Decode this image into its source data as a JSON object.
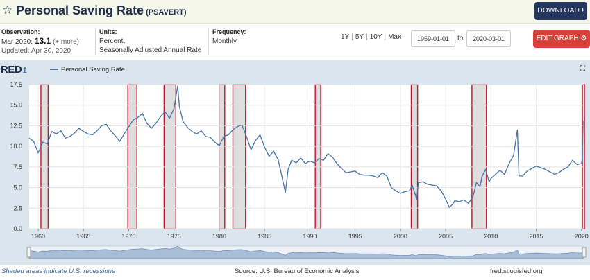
{
  "header": {
    "title": "Personal Saving Rate",
    "series_id": "(PSAVERT)",
    "download_label": "DOWNLOAD",
    "star_icon": "star-outline-icon"
  },
  "meta": {
    "observation_label": "Observation:",
    "observation_date": "Mar 2020:",
    "observation_value": "13.1",
    "observation_more": "(+ more)",
    "updated": "Updated: Apr 30, 2020",
    "units_label": "Units:",
    "units_line1": "Percent,",
    "units_line2": "Seasonally Adjusted Annual Rate",
    "frequency_label": "Frequency:",
    "frequency_value": "Monthly"
  },
  "controls": {
    "range_1y": "1Y",
    "range_5y": "5Y",
    "range_10y": "10Y",
    "range_max": "Max",
    "start_date": "1959-01-01",
    "to_label": "to",
    "end_date": "2020-03-01",
    "edit_label": "EDIT GRAPH"
  },
  "chart_header": {
    "logo_text": "RED",
    "legend_label": "Personal Saving Rate"
  },
  "footer": {
    "recession_note": "Shaded areas indicate U.S. recessions",
    "source": "Source: U.S. Bureau of Economic Analysis",
    "site": "fred.stlouisfed.org"
  },
  "colors": {
    "line": "#4572a7",
    "recession_shade": "#dedede",
    "recession_outline": "#c8102e",
    "plot_bg": "#ffffff",
    "frame_bg": "#dbe5ee",
    "navigator": "#a8bdd6"
  },
  "chart_data": {
    "type": "line",
    "title": "",
    "xlabel": "",
    "ylabel": "",
    "xlim": [
      1959.0,
      2020.25
    ],
    "ylim": [
      0,
      17.5
    ],
    "yticks": [
      "0.0",
      "2.5",
      "5.0",
      "7.5",
      "10.0",
      "12.5",
      "15.0",
      "17.5"
    ],
    "xticks": [
      "1960",
      "1965",
      "1970",
      "1975",
      "1980",
      "1985",
      "1990",
      "1995",
      "2000",
      "2005",
      "2010",
      "2015",
      "2020"
    ],
    "grid": true,
    "legend": "top-left",
    "recessions": [
      [
        1960.3,
        1961.1
      ],
      [
        1969.9,
        1970.9
      ],
      [
        1973.9,
        1975.2
      ],
      [
        1980.0,
        1980.6
      ],
      [
        1981.5,
        1982.9
      ],
      [
        1990.6,
        1991.2
      ],
      [
        2001.2,
        2001.9
      ],
      [
        2007.9,
        2009.5
      ],
      [
        2020.1,
        2020.25
      ]
    ],
    "series": [
      {
        "name": "Personal Saving Rate",
        "points": [
          [
            1959.0,
            11.0
          ],
          [
            1959.5,
            10.6
          ],
          [
            1960.0,
            9.2
          ],
          [
            1960.5,
            10.5
          ],
          [
            1961.0,
            10.3
          ],
          [
            1961.5,
            11.8
          ],
          [
            1962.0,
            11.5
          ],
          [
            1962.5,
            11.9
          ],
          [
            1963.0,
            11.0
          ],
          [
            1963.5,
            11.2
          ],
          [
            1964.0,
            11.6
          ],
          [
            1964.5,
            12.2
          ],
          [
            1965.0,
            11.8
          ],
          [
            1965.5,
            11.5
          ],
          [
            1966.0,
            11.4
          ],
          [
            1966.5,
            11.9
          ],
          [
            1967.0,
            12.5
          ],
          [
            1967.5,
            12.7
          ],
          [
            1968.0,
            11.9
          ],
          [
            1968.5,
            11.3
          ],
          [
            1969.0,
            10.6
          ],
          [
            1969.5,
            11.5
          ],
          [
            1970.0,
            12.4
          ],
          [
            1970.5,
            13.2
          ],
          [
            1971.0,
            13.5
          ],
          [
            1971.5,
            14.0
          ],
          [
            1972.0,
            12.8
          ],
          [
            1972.5,
            12.2
          ],
          [
            1973.0,
            12.8
          ],
          [
            1973.5,
            13.6
          ],
          [
            1974.0,
            14.2
          ],
          [
            1974.5,
            13.4
          ],
          [
            1975.0,
            14.6
          ],
          [
            1975.4,
            17.3
          ],
          [
            1975.6,
            14.8
          ],
          [
            1976.0,
            13.0
          ],
          [
            1976.5,
            12.3
          ],
          [
            1977.0,
            11.8
          ],
          [
            1977.5,
            11.5
          ],
          [
            1978.0,
            11.9
          ],
          [
            1978.5,
            11.2
          ],
          [
            1979.0,
            11.1
          ],
          [
            1979.5,
            10.5
          ],
          [
            1980.0,
            10.1
          ],
          [
            1980.5,
            11.2
          ],
          [
            1981.0,
            11.4
          ],
          [
            1981.5,
            12.0
          ],
          [
            1982.0,
            12.4
          ],
          [
            1982.5,
            12.6
          ],
          [
            1983.0,
            11.2
          ],
          [
            1983.5,
            9.6
          ],
          [
            1984.0,
            10.7
          ],
          [
            1984.5,
            11.4
          ],
          [
            1985.0,
            9.9
          ],
          [
            1985.5,
            8.8
          ],
          [
            1986.0,
            9.4
          ],
          [
            1986.5,
            8.4
          ],
          [
            1987.0,
            5.9
          ],
          [
            1987.3,
            4.4
          ],
          [
            1987.6,
            7.2
          ],
          [
            1988.0,
            8.3
          ],
          [
            1988.5,
            8.0
          ],
          [
            1989.0,
            8.6
          ],
          [
            1989.5,
            7.9
          ],
          [
            1990.0,
            8.2
          ],
          [
            1990.5,
            8.0
          ],
          [
            1991.0,
            8.5
          ],
          [
            1991.5,
            8.3
          ],
          [
            1992.0,
            9.1
          ],
          [
            1992.5,
            8.7
          ],
          [
            1993.0,
            7.9
          ],
          [
            1993.5,
            7.3
          ],
          [
            1994.0,
            6.8
          ],
          [
            1994.5,
            6.9
          ],
          [
            1995.0,
            7.0
          ],
          [
            1995.5,
            6.6
          ],
          [
            1996.0,
            6.5
          ],
          [
            1996.5,
            6.5
          ],
          [
            1997.0,
            6.4
          ],
          [
            1997.5,
            6.2
          ],
          [
            1998.0,
            6.8
          ],
          [
            1998.5,
            6.4
          ],
          [
            1999.0,
            5.0
          ],
          [
            1999.5,
            4.6
          ],
          [
            2000.0,
            4.3
          ],
          [
            2000.5,
            4.5
          ],
          [
            2001.0,
            4.6
          ],
          [
            2001.3,
            5.3
          ],
          [
            2001.8,
            3.6
          ],
          [
            2002.0,
            5.6
          ],
          [
            2002.5,
            5.7
          ],
          [
            2003.0,
            5.4
          ],
          [
            2003.5,
            5.3
          ],
          [
            2004.0,
            5.2
          ],
          [
            2004.5,
            4.6
          ],
          [
            2005.0,
            3.6
          ],
          [
            2005.4,
            2.6
          ],
          [
            2005.8,
            3.0
          ],
          [
            2006.0,
            3.4
          ],
          [
            2006.5,
            3.3
          ],
          [
            2007.0,
            3.5
          ],
          [
            2007.5,
            3.1
          ],
          [
            2008.0,
            3.8
          ],
          [
            2008.4,
            5.6
          ],
          [
            2008.8,
            5.1
          ],
          [
            2009.0,
            6.3
          ],
          [
            2009.4,
            7.2
          ],
          [
            2009.8,
            5.7
          ],
          [
            2010.0,
            6.1
          ],
          [
            2010.5,
            6.6
          ],
          [
            2011.0,
            7.1
          ],
          [
            2011.5,
            6.6
          ],
          [
            2012.0,
            7.9
          ],
          [
            2012.5,
            8.9
          ],
          [
            2012.92,
            12.0
          ],
          [
            2013.1,
            6.4
          ],
          [
            2013.5,
            6.4
          ],
          [
            2014.0,
            7.0
          ],
          [
            2014.5,
            7.3
          ],
          [
            2015.0,
            7.6
          ],
          [
            2015.5,
            7.4
          ],
          [
            2016.0,
            7.2
          ],
          [
            2016.5,
            6.9
          ],
          [
            2017.0,
            6.6
          ],
          [
            2017.5,
            6.8
          ],
          [
            2018.0,
            7.2
          ],
          [
            2018.5,
            7.5
          ],
          [
            2019.0,
            8.3
          ],
          [
            2019.5,
            7.8
          ],
          [
            2020.0,
            7.9
          ],
          [
            2020.08,
            8.4
          ],
          [
            2020.17,
            13.1
          ]
        ]
      }
    ]
  }
}
